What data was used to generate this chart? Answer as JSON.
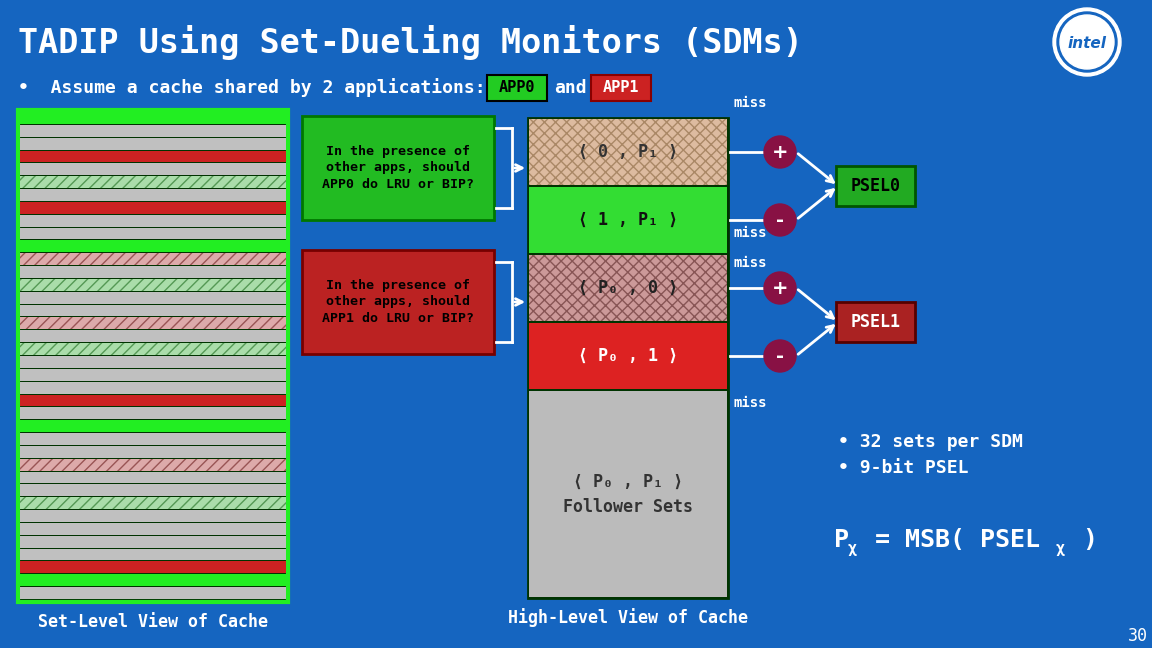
{
  "bg_color": "#1565C0",
  "title": "TADIP Using Set-Dueling Monitors (SDMs)",
  "app0_label": "APP0",
  "app1_label": "APP1",
  "app0_color": "#22CC22",
  "app1_color": "#CC2222",
  "stripe_colors": {
    "gray": "#C0C0C0",
    "green": "#22EE22",
    "red": "#CC2222",
    "dark_border": "#003300",
    "bg_dark": "#003300"
  },
  "box1_color": "#22BB22",
  "box1_text": "In the presence of\nother apps, should\nAPP0 do LRU or BIP?",
  "box2_color": "#BB2222",
  "box2_text": "In the presence of\nother apps, should\nAPP1 do LRU or BIP?",
  "follower_text": "⟨ P₀ , P₁ ⟩\nFollower Sets",
  "follower_color": "#BBBBBB",
  "psel0_text": "PSEL0",
  "psel1_text": "PSEL1",
  "psel0_color": "#22AA22",
  "psel1_color": "#AA2222",
  "info_text1": "• 32 sets per SDM",
  "info_text2": "• 9-bit PSEL",
  "set_level_label": "Set-Level View of Cache",
  "high_level_label": "High-Level View of Cache",
  "page_num": "30",
  "subtitle_text": "•  Assume a cache shared by 2 applications: ",
  "sdm_row0_text": "⟨ 0 , P₁ ⟩",
  "sdm_row1_text": "⟨ 1 , P₁ ⟩",
  "sdm_row2_text": "⟨ P₀ , 0 ⟩",
  "sdm_row3_text": "⟨ P₀ , 1 ⟩"
}
